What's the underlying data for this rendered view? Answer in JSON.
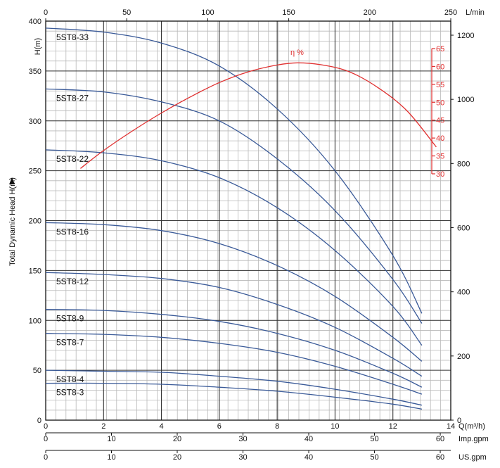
{
  "chart_data": {
    "type": "line",
    "title": "",
    "xlabel": "Q(m³/h)",
    "ylabel": "H(m)",
    "side_label": "Total Dynamic Head H(m)",
    "x_range": [
      0,
      14
    ],
    "y_range": [
      0,
      400
    ],
    "grid": true,
    "x_ticks": [
      0,
      2,
      4,
      6,
      8,
      10,
      12,
      14
    ],
    "y_ticks": [
      0,
      50,
      100,
      150,
      200,
      250,
      300,
      350,
      400
    ],
    "secondary_axes": {
      "top": {
        "unit": "L/min",
        "range": [
          0,
          250
        ],
        "ticks": [
          0,
          50,
          100,
          150,
          200,
          250
        ]
      },
      "imp_gpm": {
        "unit": "Imp.gpm",
        "range": [
          0,
          60
        ],
        "ticks": [
          0,
          10,
          20,
          30,
          40,
          50,
          60
        ]
      },
      "us_gpm": {
        "unit": "US.gpm",
        "range": [
          0,
          60
        ],
        "ticks": [
          0,
          10,
          20,
          30,
          40,
          50,
          60
        ]
      },
      "right_ft": {
        "range": [
          0,
          1200
        ],
        "ticks": [
          0,
          200,
          400,
          600,
          800,
          1000,
          1200
        ]
      },
      "efficiency": {
        "label": "η %",
        "range": [
          30,
          65
        ],
        "ticks": [
          30,
          35,
          40,
          45,
          50,
          55,
          60,
          65
        ]
      }
    },
    "series": [
      {
        "name": "5ST8-33",
        "x": [
          0,
          2,
          4,
          6,
          8,
          10,
          12,
          13
        ],
        "y": [
          393,
          389,
          378,
          355,
          312,
          250,
          165,
          107
        ]
      },
      {
        "name": "5ST8-27",
        "x": [
          0,
          2,
          4,
          6,
          8,
          10,
          12,
          13
        ],
        "y": [
          332,
          329,
          319,
          300,
          262,
          210,
          141,
          97
        ]
      },
      {
        "name": "5ST8-22",
        "x": [
          0,
          2,
          4,
          6,
          8,
          10,
          12,
          13
        ],
        "y": [
          271,
          268,
          260,
          243,
          213,
          170,
          114,
          75
        ]
      },
      {
        "name": "5ST8-16",
        "x": [
          0,
          2,
          4,
          6,
          8,
          10,
          12,
          13
        ],
        "y": [
          198,
          196,
          190,
          177,
          155,
          124,
          83,
          59
        ]
      },
      {
        "name": "5ST8-12",
        "x": [
          0,
          2,
          4,
          6,
          8,
          10,
          12,
          13
        ],
        "y": [
          148,
          146,
          142,
          133,
          116,
          93,
          62,
          44
        ]
      },
      {
        "name": "5ST8-9",
        "x": [
          0,
          2,
          4,
          6,
          8,
          10,
          12,
          13
        ],
        "y": [
          111,
          110,
          106,
          99,
          87,
          70,
          47,
          33
        ]
      },
      {
        "name": "5ST8-7",
        "x": [
          0,
          2,
          4,
          6,
          8,
          10,
          12,
          13
        ],
        "y": [
          87,
          86,
          83,
          77,
          68,
          54,
          36,
          26
        ]
      },
      {
        "name": "5ST8-4",
        "x": [
          0,
          2,
          4,
          6,
          8,
          10,
          12,
          13
        ],
        "y": [
          50,
          49,
          48,
          44,
          39,
          31,
          21,
          15
        ]
      },
      {
        "name": "5ST8-3",
        "x": [
          0,
          2,
          4,
          6,
          8,
          10,
          12,
          13
        ],
        "y": [
          37,
          37,
          36,
          33,
          29,
          23,
          16,
          11
        ]
      }
    ],
    "efficiency_curve": {
      "name": "η %",
      "x": [
        1.2,
        2,
        3,
        4,
        5,
        6,
        7,
        8,
        8.7,
        9.5,
        10.5,
        11.5,
        12.5,
        13.5
      ],
      "y": [
        31.5,
        36.5,
        42,
        47,
        51.5,
        55.5,
        58.5,
        60.4,
        61,
        60.5,
        58.5,
        54,
        47.5,
        37.5
      ]
    }
  }
}
